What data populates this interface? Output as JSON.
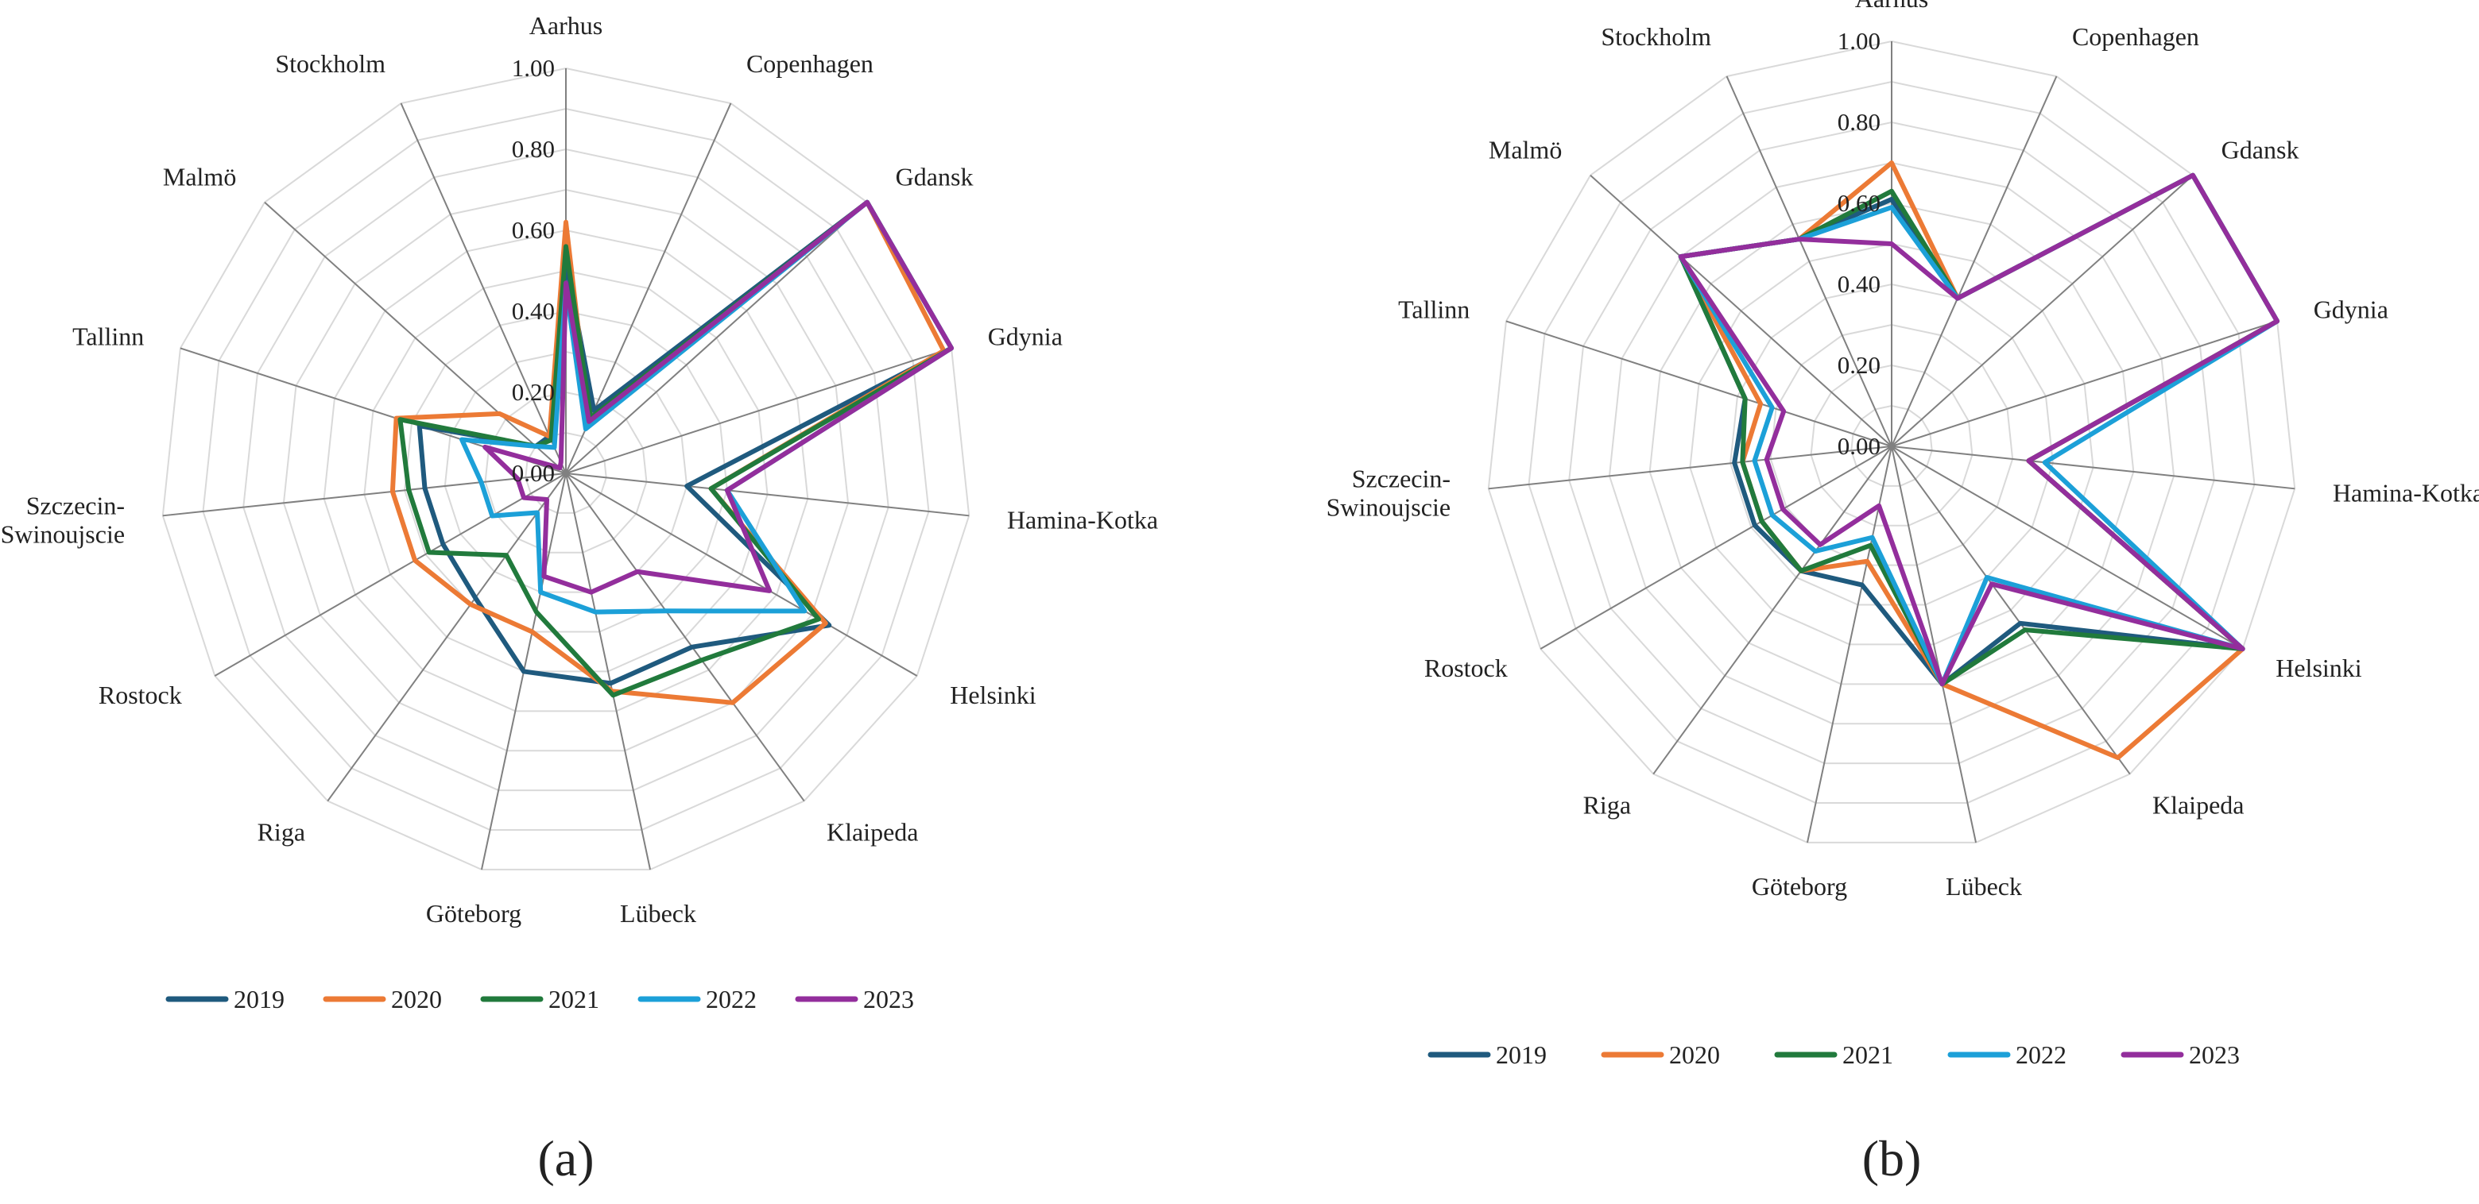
{
  "chart_data": [
    {
      "type": "radar",
      "panel_label": "(a)",
      "categories": [
        "Aarhus",
        "Copenhagen",
        "Gdansk",
        "Gdynia",
        "Hamina-Kotka",
        "Helsinki",
        "Klaipeda",
        "Lübeck",
        "Göteborg",
        "Riga",
        "Rostock",
        "Szczecin-\nSwinoujscie",
        "Tallinn",
        "Malmö",
        "Stockholm"
      ],
      "rlim": [
        0,
        1
      ],
      "rticks": [
        "0.00",
        "0.20",
        "0.40",
        "0.60",
        "0.80",
        "1.00"
      ],
      "grid": true,
      "legend_position": "bottom",
      "series": [
        {
          "name": "2019",
          "color": "#1f5a7e",
          "values": [
            0.52,
            0.17,
            1.0,
            1.0,
            0.3,
            0.75,
            0.53,
            0.53,
            0.5,
            0.38,
            0.35,
            0.35,
            0.38,
            0.1,
            0.1
          ]
        },
        {
          "name": "2020",
          "color": "#ec7a35",
          "values": [
            0.62,
            0.14,
            1.0,
            0.98,
            0.36,
            0.74,
            0.7,
            0.55,
            0.4,
            0.4,
            0.43,
            0.43,
            0.44,
            0.22,
            0.1
          ]
        },
        {
          "name": "2021",
          "color": "#217a3c",
          "values": [
            0.56,
            0.15,
            1.0,
            1.0,
            0.36,
            0.72,
            0.57,
            0.56,
            0.35,
            0.25,
            0.39,
            0.39,
            0.43,
            0.1,
            0.09
          ]
        },
        {
          "name": "2022",
          "color": "#1ca0d8",
          "values": [
            0.46,
            0.12,
            1.0,
            1.0,
            0.4,
            0.68,
            0.42,
            0.35,
            0.3,
            0.12,
            0.21,
            0.21,
            0.27,
            0.1,
            0.07
          ]
        },
        {
          "name": "2023",
          "color": "#932e9c",
          "values": [
            0.47,
            0.14,
            1.0,
            1.0,
            0.4,
            0.58,
            0.3,
            0.3,
            0.26,
            0.08,
            0.12,
            0.12,
            0.21,
            0.02,
            0.03
          ]
        }
      ]
    },
    {
      "type": "radar",
      "panel_label": "(b)",
      "categories": [
        "Aarhus",
        "Copenhagen",
        "Gdansk",
        "Gdynia",
        "Hamina-Kotka",
        "Helsinki",
        "Klaipeda",
        "Lübeck",
        "Göteborg",
        "Riga",
        "Rostock",
        "Szczecin-\nSwinoujscie",
        "Tallinn",
        "Malmö",
        "Stockholm"
      ],
      "rlim": [
        0,
        1
      ],
      "rticks": [
        "0.00",
        "0.20",
        "0.40",
        "0.60",
        "0.80",
        "1.00"
      ],
      "grid": true,
      "legend_position": "bottom",
      "series": [
        {
          "name": "2019",
          "color": "#1f5a7e",
          "values": [
            0.61,
            0.4,
            1.0,
            1.0,
            0.34,
            1.0,
            0.54,
            0.6,
            0.35,
            0.38,
            0.39,
            0.39,
            0.38,
            0.7,
            0.56
          ]
        },
        {
          "name": "2020",
          "color": "#ec7a35",
          "values": [
            0.7,
            0.4,
            1.0,
            1.0,
            0.34,
            1.0,
            0.95,
            0.6,
            0.29,
            0.38,
            0.37,
            0.37,
            0.34,
            0.7,
            0.56
          ]
        },
        {
          "name": "2021",
          "color": "#217a3c",
          "values": [
            0.63,
            0.4,
            1.0,
            1.0,
            0.34,
            1.0,
            0.56,
            0.6,
            0.25,
            0.38,
            0.37,
            0.37,
            0.38,
            0.7,
            0.56
          ]
        },
        {
          "name": "2022",
          "color": "#1ca0d8",
          "values": [
            0.59,
            0.4,
            1.0,
            1.0,
            0.38,
            1.0,
            0.4,
            0.6,
            0.23,
            0.32,
            0.34,
            0.34,
            0.31,
            0.7,
            0.56
          ]
        },
        {
          "name": "2023",
          "color": "#932e9c",
          "values": [
            0.5,
            0.4,
            1.0,
            1.0,
            0.34,
            1.0,
            0.42,
            0.6,
            0.15,
            0.3,
            0.31,
            0.31,
            0.28,
            0.7,
            0.56
          ]
        }
      ]
    }
  ]
}
